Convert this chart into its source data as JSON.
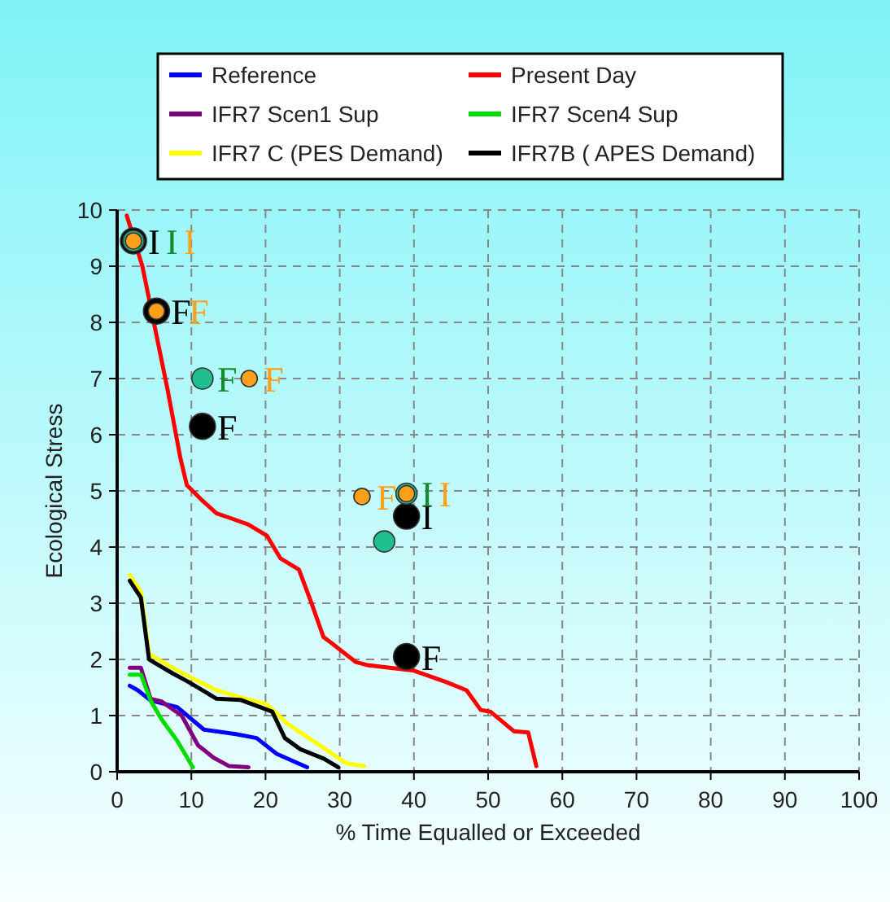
{
  "chart_data": {
    "type": "line",
    "xlabel": "% Time Equalled or Exceeded",
    "ylabel": "Ecological Stress",
    "xlim": [
      0,
      100
    ],
    "ylim": [
      0,
      10
    ],
    "xticks": [
      0,
      10,
      20,
      30,
      40,
      50,
      60,
      70,
      80,
      90,
      100
    ],
    "yticks": [
      0,
      1,
      2,
      3,
      4,
      5,
      6,
      7,
      8,
      9,
      10
    ],
    "grid": true,
    "legend": "top",
    "series": [
      {
        "name": "Reference",
        "color": "#0000ff",
        "x": [
          1.7,
          2.8,
          4.5,
          8.1,
          11.7,
          16,
          18.8,
          21.5,
          25.6
        ],
        "values": [
          1.53,
          1.45,
          1.27,
          1.15,
          0.75,
          0.67,
          0.6,
          0.32,
          0.08
        ]
      },
      {
        "name": "Present Day",
        "color": "#ff0000",
        "x": [
          1.3,
          3.4,
          5.3,
          6.8,
          8.5,
          9.4,
          11.3,
          13.4,
          15.6,
          17.7,
          20.2,
          22,
          24.5,
          26.2,
          27.8,
          28.8,
          32.2,
          33.7,
          40,
          44.3,
          47.1,
          49,
          50.3,
          53.5,
          55.4,
          56.5
        ],
        "values": [
          9.9,
          9.0,
          null,
          6.8,
          5.6,
          5.1,
          4.85,
          4.6,
          4.5,
          4.4,
          4.2,
          3.8,
          3.6,
          3.0,
          2.4,
          2.3,
          1.95,
          1.9,
          1.8,
          1.6,
          1.45,
          1.1,
          1.07,
          0.72,
          0.7,
          0.1
        ]
      },
      {
        "name": "IFR7 Scen1 Sup",
        "color": "#800080",
        "x": [
          1.7,
          3.2,
          4.5,
          6,
          8.7,
          10.9,
          13,
          15.1,
          17.7
        ],
        "values": [
          1.85,
          1.85,
          1.3,
          1.25,
          1.0,
          0.47,
          0.25,
          0.1,
          0.08
        ]
      },
      {
        "name": "IFR7 Scen4 Sup",
        "color": "#00dd00",
        "x": [
          1.7,
          3.2,
          4.5,
          6,
          8.1,
          10.2
        ],
        "values": [
          1.73,
          1.73,
          1.27,
          0.93,
          0.55,
          0.08
        ]
      },
      {
        "name": "IFR7 C (PES Demand)",
        "color": "#ffff00",
        "x": [
          1.7,
          3.2,
          4.3,
          4.9,
          7.5,
          9.6,
          13.4,
          17.3,
          20.2,
          23,
          27.3,
          30.9,
          33.3
        ],
        "values": [
          3.5,
          3.2,
          2.1,
          2.05,
          1.85,
          1.7,
          1.45,
          1.3,
          1.2,
          0.85,
          0.47,
          0.15,
          0.1
        ]
      },
      {
        "name": "IFR7B ( APES Demand)",
        "color": "#000000",
        "x": [
          1.7,
          3.2,
          4.3,
          4.9,
          7.5,
          9.6,
          13.4,
          16.6,
          20.9,
          22.6,
          24.7,
          27.9,
          29.8
        ],
        "values": [
          3.4,
          3.1,
          2.0,
          1.95,
          1.75,
          1.6,
          1.3,
          1.28,
          1.07,
          0.6,
          0.4,
          0.23,
          0.08
        ]
      },
      {
        "type": "scatter",
        "marker": "circle",
        "color": "#000000",
        "x": [
          2.2,
          5.3,
          11.5,
          39,
          39
        ],
        "values": [
          9.45,
          8.2,
          6.15,
          4.55,
          2.05
        ],
        "value_labels": [
          "I",
          "F",
          "F",
          "I",
          "F"
        ]
      },
      {
        "type": "scatter",
        "marker": "circle",
        "color": "#1fbf8f",
        "x": [
          2.2,
          11.5,
          39,
          36
        ],
        "values": [
          9.45,
          7.0,
          4.95,
          4.1
        ],
        "value_labels": [
          "I",
          "F",
          "I",
          null
        ]
      },
      {
        "type": "scatter",
        "marker": "circle",
        "color": "#ff9f1a",
        "x": [
          2.2,
          5.3,
          17.8,
          33,
          39
        ],
        "values": [
          9.45,
          8.2,
          7.0,
          4.9,
          4.95
        ],
        "value_labels": [
          "I",
          "F",
          "F",
          "F",
          "I"
        ]
      }
    ]
  }
}
